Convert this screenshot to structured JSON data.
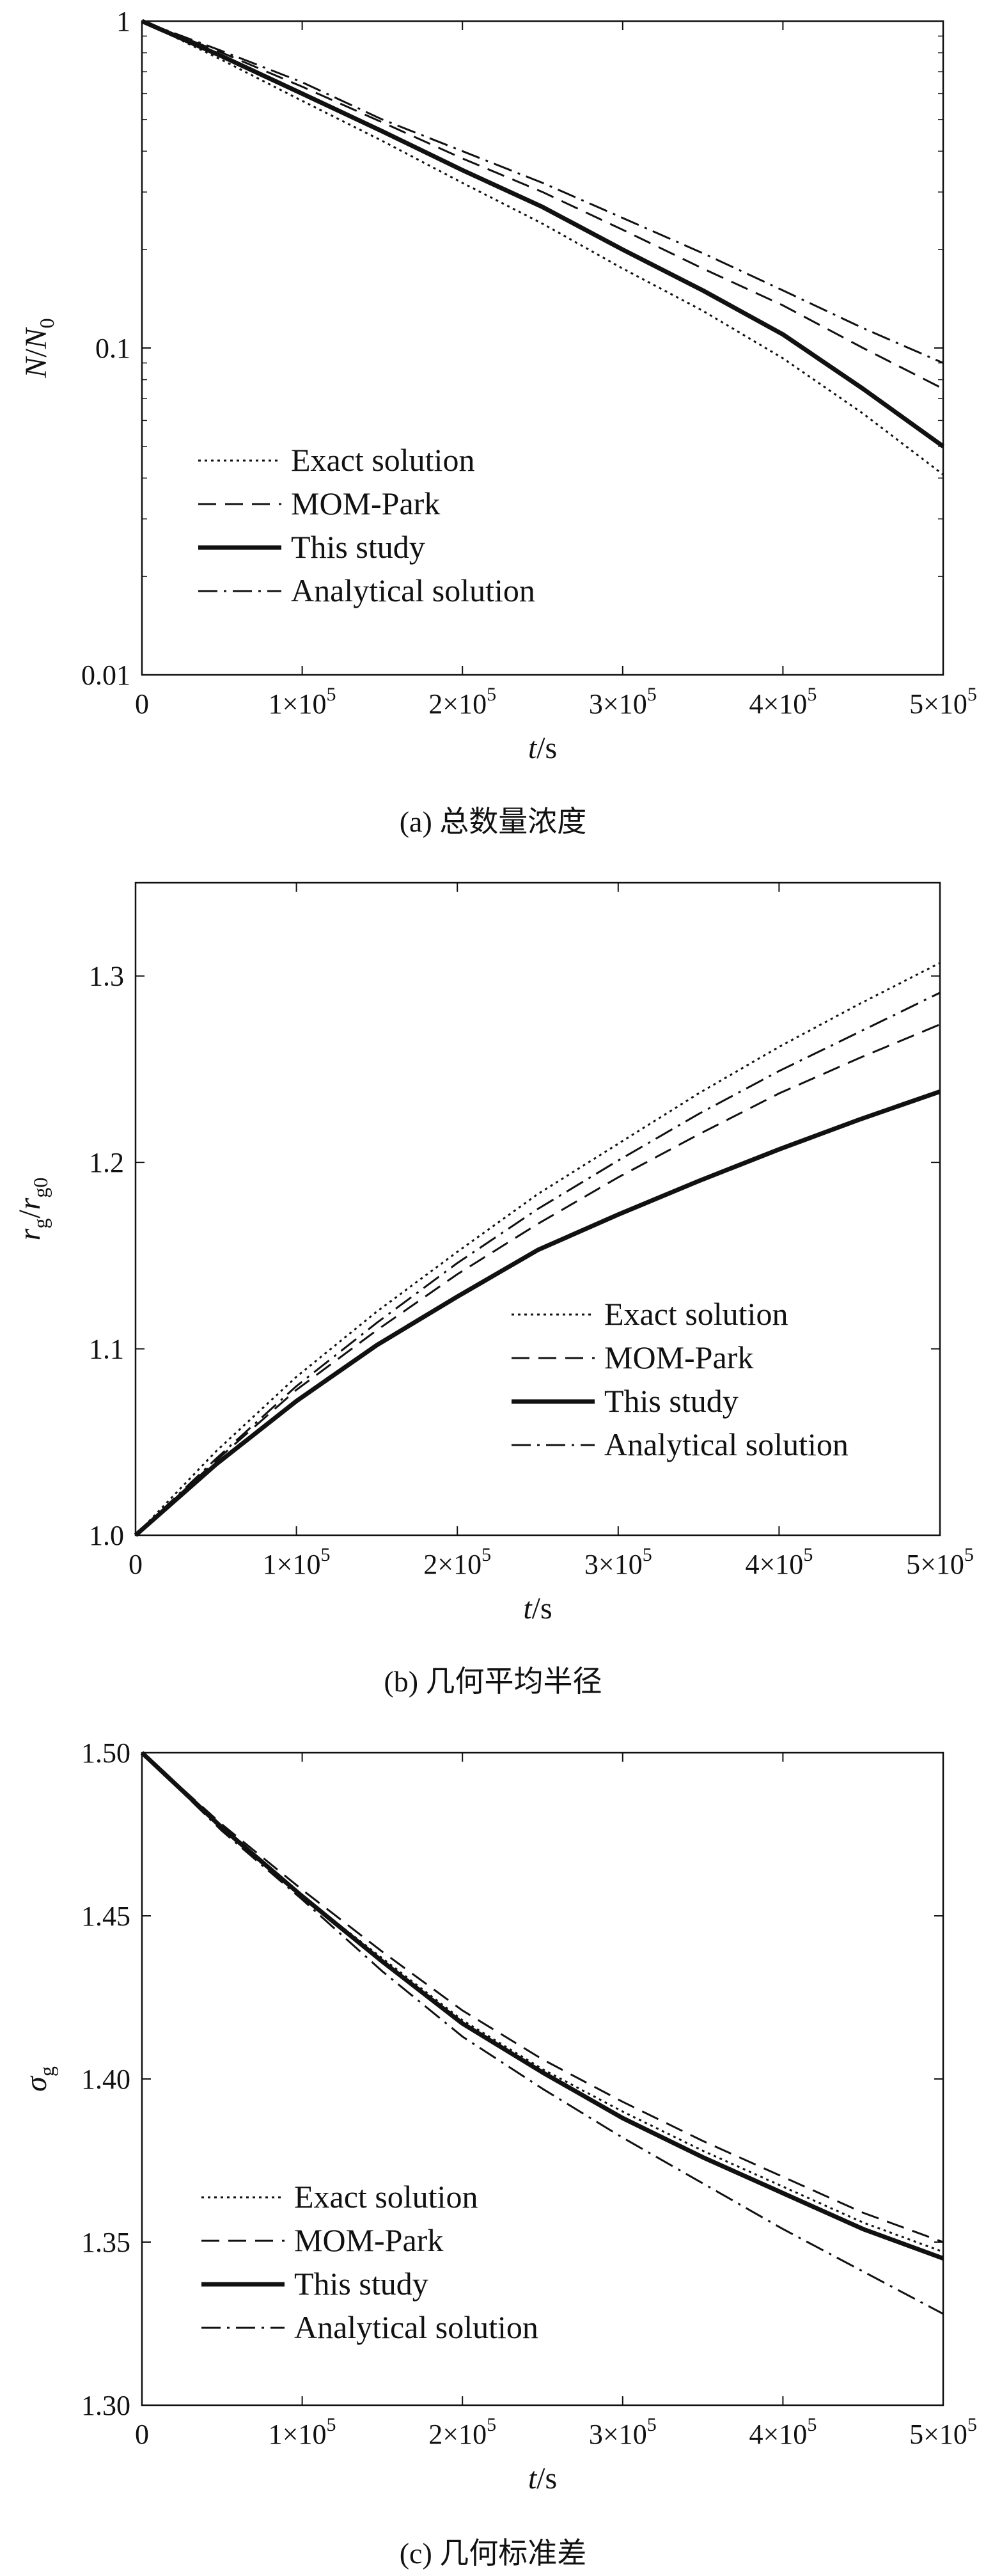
{
  "chart_data": [
    {
      "type": "line",
      "caption": "(a) 总数量浓度",
      "xlabel": "t/s",
      "ylabel": "N/N0",
      "yscale": "log",
      "xlim": [
        0,
        500000
      ],
      "ylim": [
        0.01,
        1
      ],
      "xticks": [
        0,
        100000,
        200000,
        300000,
        400000,
        500000
      ],
      "xticklabels": [
        "0",
        "1×105",
        "2×105",
        "3×105",
        "4×105",
        "5×105"
      ],
      "yticks": [
        0.01,
        0.1,
        1
      ],
      "yticklabels": [
        "0.01",
        "0.1",
        "1"
      ],
      "legend": "lower-left",
      "series": [
        {
          "name": "Exact solution",
          "style": "dotted",
          "x": [
            0,
            50000,
            100000,
            150000,
            200000,
            250000,
            300000,
            350000,
            400000,
            450000,
            500000
          ],
          "y": [
            1,
            0.76,
            0.57,
            0.43,
            0.32,
            0.24,
            0.175,
            0.13,
            0.093,
            0.063,
            0.041
          ]
        },
        {
          "name": "MOM-Park",
          "style": "dashed",
          "x": [
            0,
            50000,
            100000,
            150000,
            200000,
            250000,
            300000,
            350000,
            400000,
            450000,
            500000
          ],
          "y": [
            1,
            0.8,
            0.63,
            0.49,
            0.38,
            0.3,
            0.23,
            0.175,
            0.135,
            0.1,
            0.075
          ]
        },
        {
          "name": "This study",
          "style": "solid-bold",
          "x": [
            0,
            50000,
            100000,
            150000,
            200000,
            250000,
            300000,
            350000,
            400000,
            450000,
            500000
          ],
          "y": [
            1,
            0.78,
            0.6,
            0.46,
            0.35,
            0.27,
            0.2,
            0.15,
            0.11,
            0.075,
            0.05
          ]
        },
        {
          "name": "Analytical solution",
          "style": "dashdot",
          "x": [
            0,
            50000,
            100000,
            150000,
            200000,
            250000,
            300000,
            350000,
            400000,
            450000,
            500000
          ],
          "y": [
            1,
            0.81,
            0.65,
            0.5,
            0.4,
            0.32,
            0.25,
            0.195,
            0.15,
            0.115,
            0.09
          ]
        }
      ]
    },
    {
      "type": "line",
      "caption": "(b) 几何平均半径",
      "xlabel": "t/s",
      "ylabel": "rg/rg0",
      "xlim": [
        0,
        500000
      ],
      "ylim": [
        1.0,
        1.35
      ],
      "xticks": [
        0,
        100000,
        200000,
        300000,
        400000,
        500000
      ],
      "xticklabels": [
        "0",
        "1×105",
        "2×105",
        "3×105",
        "4×105",
        "5×105"
      ],
      "yticks": [
        1.0,
        1.1,
        1.2,
        1.3
      ],
      "yticklabels": [
        "1.0",
        "1.1",
        "1.2",
        "1.3"
      ],
      "legend": "lower-right",
      "series": [
        {
          "name": "Exact solution",
          "style": "dotted",
          "x": [
            0,
            50000,
            100000,
            150000,
            200000,
            250000,
            300000,
            350000,
            400000,
            450000,
            500000
          ],
          "y": [
            1,
            1.045,
            1.085,
            1.12,
            1.152,
            1.183,
            1.21,
            1.237,
            1.262,
            1.285,
            1.307
          ]
        },
        {
          "name": "MOM-Park",
          "style": "dashed",
          "x": [
            0,
            50000,
            100000,
            150000,
            200000,
            250000,
            300000,
            350000,
            400000,
            450000,
            500000
          ],
          "y": [
            1,
            1.04,
            1.078,
            1.11,
            1.14,
            1.167,
            1.192,
            1.215,
            1.237,
            1.256,
            1.274
          ]
        },
        {
          "name": "This study",
          "style": "solid-bold",
          "x": [
            0,
            50000,
            100000,
            150000,
            200000,
            250000,
            300000,
            350000,
            400000,
            450000,
            500000
          ],
          "y": [
            1,
            1.038,
            1.072,
            1.102,
            1.128,
            1.153,
            1.172,
            1.19,
            1.207,
            1.223,
            1.238
          ]
        },
        {
          "name": "Analytical solution",
          "style": "dashdot",
          "x": [
            0,
            50000,
            100000,
            150000,
            200000,
            250000,
            300000,
            350000,
            400000,
            450000,
            500000
          ],
          "y": [
            1,
            1.041,
            1.08,
            1.114,
            1.146,
            1.175,
            1.201,
            1.226,
            1.249,
            1.27,
            1.291
          ]
        }
      ]
    },
    {
      "type": "line",
      "caption": "(c) 几何标准差",
      "xlabel": "t/s",
      "ylabel": "σg",
      "xlim": [
        0,
        500000
      ],
      "ylim": [
        1.3,
        1.5
      ],
      "xticks": [
        0,
        100000,
        200000,
        300000,
        400000,
        500000
      ],
      "xticklabels": [
        "0",
        "1×105",
        "2×105",
        "3×105",
        "4×105",
        "5×105"
      ],
      "yticks": [
        1.3,
        1.35,
        1.4,
        1.45,
        1.5
      ],
      "yticklabels": [
        "1.30",
        "1.35",
        "1.40",
        "1.45",
        "1.50"
      ],
      "legend": "lower-left",
      "series": [
        {
          "name": "Exact solution",
          "style": "dotted",
          "x": [
            0,
            50000,
            100000,
            150000,
            200000,
            250000,
            300000,
            350000,
            400000,
            450000,
            500000
          ],
          "y": [
            1.5,
            1.477,
            1.456,
            1.437,
            1.418,
            1.403,
            1.39,
            1.378,
            1.367,
            1.356,
            1.347
          ]
        },
        {
          "name": "MOM-Park",
          "style": "dashed",
          "x": [
            0,
            50000,
            100000,
            150000,
            200000,
            250000,
            300000,
            350000,
            400000,
            450000,
            500000
          ],
          "y": [
            1.5,
            1.478,
            1.458,
            1.439,
            1.421,
            1.406,
            1.393,
            1.381,
            1.37,
            1.359,
            1.35
          ]
        },
        {
          "name": "This study",
          "style": "solid-bold",
          "x": [
            0,
            50000,
            100000,
            150000,
            200000,
            250000,
            300000,
            350000,
            400000,
            450000,
            500000
          ],
          "y": [
            1.5,
            1.477,
            1.456,
            1.436,
            1.417,
            1.402,
            1.388,
            1.376,
            1.365,
            1.354,
            1.345
          ]
        },
        {
          "name": "Analytical solution",
          "style": "dashdot",
          "x": [
            0,
            50000,
            100000,
            150000,
            200000,
            250000,
            300000,
            350000,
            400000,
            450000,
            500000
          ],
          "y": [
            1.5,
            1.476,
            1.455,
            1.433,
            1.413,
            1.397,
            1.382,
            1.368,
            1.354,
            1.341,
            1.328
          ]
        }
      ]
    }
  ]
}
